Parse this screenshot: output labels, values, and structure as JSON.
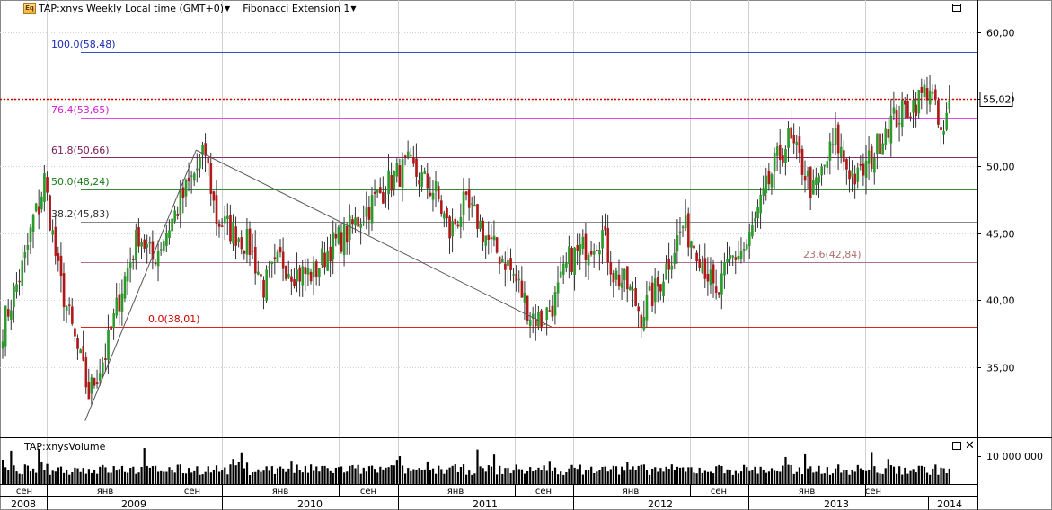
{
  "header": {
    "symbol_title": "TAP:xnys Weekly Local time (GMT+0)",
    "indicator_title": "Fibonacci Extension 1",
    "symbol_icon": "Eq"
  },
  "volume_panel": {
    "title": "TAP:xnysVolume",
    "axis_label": "10 000 000"
  },
  "current_price": {
    "label": "55,02",
    "value": 55.02,
    "color": "#cc0000"
  },
  "fib_levels": [
    {
      "label": "100.0(58,48)",
      "value": 58.48,
      "color": "#3b4cc9",
      "label_color": "#1a2ab0"
    },
    {
      "label": "76.4(53,65)",
      "value": 53.65,
      "color": "#ee44ee",
      "label_color": "#d020d0"
    },
    {
      "label": "61.8(50,66)",
      "value": 50.66,
      "color": "#8a2a6a",
      "label_color": "#7a1a5a"
    },
    {
      "label": "50.0(48,24)",
      "value": 48.24,
      "color": "#3a8a3a",
      "label_color": "#1a7a1a"
    },
    {
      "label": "38.2(45,83)",
      "value": 45.83,
      "color": "#888888",
      "label_color": "#333333"
    },
    {
      "label": "23.6(42,84)",
      "value": 42.84,
      "color": "#b07090",
      "label_color": "#b07070"
    },
    {
      "label": "0.0(38,01)",
      "value": 38.01,
      "color": "#dd2222",
      "label_color": "#cc0000"
    }
  ],
  "chart_data": {
    "type": "candlestick",
    "ylim": [
      30,
      63
    ],
    "yticks": [
      "60,00",
      "55,00",
      "50,00",
      "45,00",
      "40,00",
      "35,00"
    ],
    "ytick_values": [
      60,
      55,
      50,
      45,
      40,
      35
    ],
    "month_labels": [
      "сен",
      "янв",
      "сен",
      "янв",
      "сен",
      "янв",
      "сен",
      "янв",
      "сен",
      "янв",
      "сен"
    ],
    "year_labels": [
      "2008",
      "2009",
      "2010",
      "2011",
      "2012",
      "2013",
      "2014"
    ],
    "colors": {
      "up": "#2a9a2a",
      "down": "#b01818",
      "grid": "#d0d0d0",
      "trend": "#555555"
    },
    "close_anchors": [
      {
        "week": 0,
        "close": 38
      },
      {
        "week": 8,
        "close": 43
      },
      {
        "week": 11,
        "close": 46
      },
      {
        "week": 13,
        "close": 47
      },
      {
        "week": 15,
        "close": 49
      },
      {
        "week": 20,
        "close": 42
      },
      {
        "week": 26,
        "close": 37
      },
      {
        "week": 31,
        "close": 33
      },
      {
        "week": 37,
        "close": 36
      },
      {
        "week": 43,
        "close": 41
      },
      {
        "week": 49,
        "close": 45
      },
      {
        "week": 54,
        "close": 43
      },
      {
        "week": 61,
        "close": 46
      },
      {
        "week": 68,
        "close": 49
      },
      {
        "week": 73,
        "close": 51
      },
      {
        "week": 77,
        "close": 46
      },
      {
        "week": 84,
        "close": 45
      },
      {
        "week": 89,
        "close": 44
      },
      {
        "week": 94,
        "close": 41
      },
      {
        "week": 100,
        "close": 43
      },
      {
        "week": 106,
        "close": 42
      },
      {
        "week": 112,
        "close": 42
      },
      {
        "week": 118,
        "close": 44
      },
      {
        "week": 124,
        "close": 45
      },
      {
        "week": 132,
        "close": 47
      },
      {
        "week": 140,
        "close": 49
      },
      {
        "week": 146,
        "close": 50
      },
      {
        "week": 151,
        "close": 49
      },
      {
        "week": 156,
        "close": 48
      },
      {
        "week": 161,
        "close": 45
      },
      {
        "week": 166,
        "close": 47
      },
      {
        "week": 171,
        "close": 46
      },
      {
        "week": 176,
        "close": 44
      },
      {
        "week": 181,
        "close": 43
      },
      {
        "week": 186,
        "close": 41
      },
      {
        "week": 190,
        "close": 39
      },
      {
        "week": 194,
        "close": 38.5
      },
      {
        "week": 199,
        "close": 40
      },
      {
        "week": 204,
        "close": 43
      },
      {
        "week": 210,
        "close": 44
      },
      {
        "week": 216,
        "close": 45
      },
      {
        "week": 220,
        "close": 42
      },
      {
        "week": 225,
        "close": 41
      },
      {
        "week": 230,
        "close": 39
      },
      {
        "week": 236,
        "close": 41
      },
      {
        "week": 240,
        "close": 43
      },
      {
        "week": 245,
        "close": 45.5
      },
      {
        "week": 250,
        "close": 44
      },
      {
        "week": 254,
        "close": 42
      },
      {
        "week": 257,
        "close": 40
      },
      {
        "week": 262,
        "close": 43
      },
      {
        "week": 268,
        "close": 44
      },
      {
        "week": 273,
        "close": 47
      },
      {
        "week": 278,
        "close": 50
      },
      {
        "week": 283,
        "close": 52
      },
      {
        "week": 288,
        "close": 50
      },
      {
        "week": 292,
        "close": 48
      },
      {
        "week": 296,
        "close": 50
      },
      {
        "week": 300,
        "close": 52
      },
      {
        "week": 304,
        "close": 50
      },
      {
        "week": 308,
        "close": 49
      },
      {
        "week": 314,
        "close": 51
      },
      {
        "week": 318,
        "close": 53
      },
      {
        "week": 324,
        "close": 54
      },
      {
        "week": 330,
        "close": 55
      },
      {
        "week": 334,
        "close": 56
      },
      {
        "week": 337,
        "close": 53
      },
      {
        "week": 339,
        "close": 52
      },
      {
        "week": 341,
        "close": 55.02
      }
    ],
    "fib_trend_points": [
      {
        "week": 30,
        "price": 31.0
      },
      {
        "week": 70,
        "price": 51.2
      },
      {
        "week": 198,
        "price": 38.01
      }
    ]
  }
}
